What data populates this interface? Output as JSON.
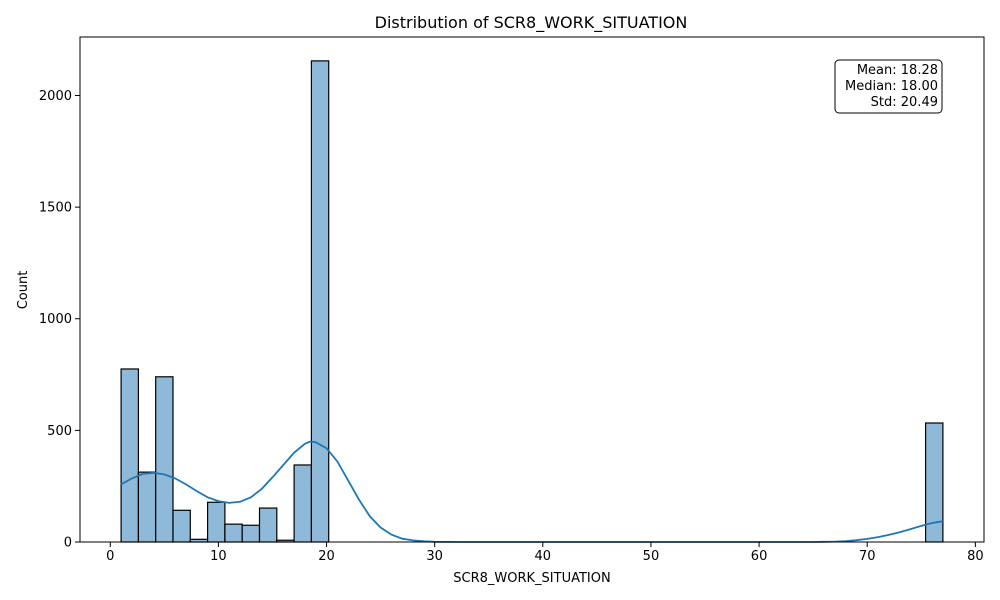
{
  "chart_data": {
    "type": "histogram",
    "title": "Distribution of SCR8_WORK_SITUATION",
    "xlabel": "SCR8_WORK_SITUATION",
    "ylabel": "Count",
    "xlim": [
      -2.8,
      80.8
    ],
    "ylim": [
      0,
      2262
    ],
    "xticks": [
      0,
      10,
      20,
      30,
      40,
      50,
      60,
      70,
      80
    ],
    "yticks": [
      0,
      500,
      1000,
      1500,
      2000
    ],
    "grid": false,
    "bar_color": "#8fb9d9",
    "edge_color": "#000000",
    "kde_color": "#1f77b4",
    "bins": [
      {
        "x0": 1.0,
        "x1": 2.6,
        "count": 775
      },
      {
        "x0": 2.6,
        "x1": 4.2,
        "count": 313
      },
      {
        "x0": 4.2,
        "x1": 5.8,
        "count": 740
      },
      {
        "x0": 5.8,
        "x1": 7.4,
        "count": 142
      },
      {
        "x0": 7.4,
        "x1": 9.0,
        "count": 12
      },
      {
        "x0": 9.0,
        "x1": 10.6,
        "count": 178
      },
      {
        "x0": 10.6,
        "x1": 12.2,
        "count": 80
      },
      {
        "x0": 12.2,
        "x1": 13.8,
        "count": 75
      },
      {
        "x0": 13.8,
        "x1": 15.4,
        "count": 152
      },
      {
        "x0": 15.4,
        "x1": 17.0,
        "count": 8
      },
      {
        "x0": 17.0,
        "x1": 18.6,
        "count": 345
      },
      {
        "x0": 18.6,
        "x1": 20.2,
        "count": 2155
      },
      {
        "x0": 75.4,
        "x1": 77.0,
        "count": 533
      }
    ],
    "kde": {
      "x": [
        1,
        2,
        3,
        4,
        5,
        6,
        7,
        8,
        9,
        10,
        11,
        12,
        13,
        14,
        15,
        16,
        17,
        18,
        18.5,
        19,
        20,
        21,
        22,
        23,
        24,
        25,
        26,
        27,
        28,
        29,
        30,
        32,
        35,
        40,
        50,
        60,
        65,
        66,
        67,
        68,
        69,
        70,
        71,
        72,
        73,
        74,
        75,
        76,
        77
      ],
      "y": [
        258,
        285,
        305,
        310,
        303,
        285,
        258,
        228,
        200,
        183,
        175,
        180,
        200,
        238,
        290,
        345,
        400,
        440,
        450,
        447,
        420,
        360,
        275,
        190,
        115,
        65,
        33,
        15,
        7,
        3,
        1,
        0,
        0,
        0,
        0,
        0,
        0,
        1,
        2,
        4,
        8,
        14,
        22,
        32,
        44,
        58,
        72,
        85,
        93
      ]
    },
    "annotation": {
      "lines": [
        "Mean: 18.28",
        "Median: 18.00",
        "Std: 20.49"
      ],
      "position": "top-right"
    }
  }
}
